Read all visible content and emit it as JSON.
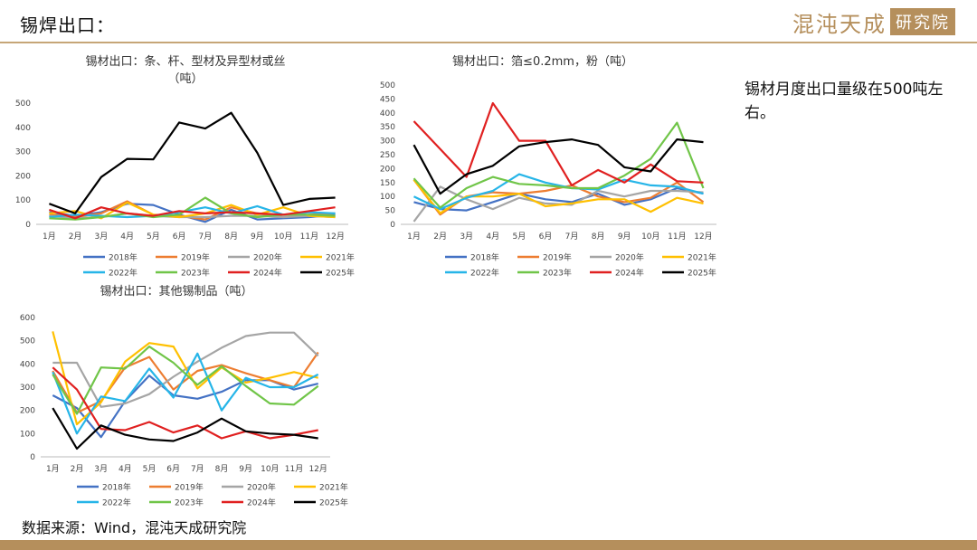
{
  "header": {
    "title": "锡焊出口：",
    "logo_main": "混沌天成",
    "logo_badge": "研究院"
  },
  "note": "锡材月度出口量级在500吨左右。",
  "source": "数据来源：Wind，混沌天成研究院",
  "colors": {
    "accent": "#c6a677"
  },
  "chart_data": [
    {
      "id": "c1",
      "type": "line",
      "title": [
        "锡材出口：条、杆、型材及异型材或丝",
        "（吨）"
      ],
      "categories": [
        "1月",
        "2月",
        "3月",
        "4月",
        "5月",
        "6月",
        "7月",
        "8月",
        "9月",
        "10月",
        "11月",
        "12月"
      ],
      "ylim": [
        0,
        500
      ],
      "yticks": [
        0,
        100,
        200,
        300,
        400,
        500
      ],
      "series": [
        {
          "name": "2018年",
          "color": "#4472c4",
          "values": [
            50,
            35,
            50,
            85,
            80,
            40,
            10,
            60,
            20,
            25,
            30,
            40
          ]
        },
        {
          "name": "2019年",
          "color": "#ed7d31",
          "values": [
            40,
            30,
            45,
            95,
            40,
            35,
            20,
            70,
            45,
            30,
            40,
            45
          ]
        },
        {
          "name": "2020年",
          "color": "#a5a5a5",
          "values": [
            35,
            25,
            30,
            45,
            35,
            30,
            30,
            35,
            35,
            30,
            35,
            30
          ]
        },
        {
          "name": "2021年",
          "color": "#ffc000",
          "values": [
            45,
            55,
            25,
            90,
            40,
            30,
            45,
            80,
            40,
            70,
            35,
            30
          ]
        },
        {
          "name": "2022年",
          "color": "#26b5e8",
          "values": [
            30,
            40,
            35,
            30,
            35,
            50,
            70,
            45,
            75,
            40,
            50,
            45
          ]
        },
        {
          "name": "2023年",
          "color": "#70c548",
          "values": [
            25,
            20,
            30,
            45,
            30,
            40,
            110,
            45,
            30,
            40,
            40,
            35
          ]
        },
        {
          "name": "2024年",
          "color": "#e02020",
          "values": [
            60,
            25,
            70,
            45,
            35,
            55,
            45,
            50,
            45,
            40,
            55,
            70
          ]
        },
        {
          "name": "2025年",
          "color": "#000000",
          "values": [
            85,
            45,
            195,
            270,
            268,
            420,
            395,
            460,
            295,
            80,
            105,
            110
          ]
        }
      ]
    },
    {
      "id": "c2",
      "type": "line",
      "title": [
        "锡材出口：箔≤0.2mm，粉（吨）"
      ],
      "categories": [
        "1月",
        "2月",
        "3月",
        "4月",
        "5月",
        "6月",
        "7月",
        "8月",
        "9月",
        "10月",
        "11月",
        "12月"
      ],
      "ylim": [
        0,
        500
      ],
      "yticks": [
        0,
        50,
        100,
        150,
        200,
        250,
        300,
        350,
        400,
        450,
        500
      ],
      "series": [
        {
          "name": "2018年",
          "color": "#4472c4",
          "values": [
            80,
            55,
            50,
            80,
            110,
            90,
            80,
            110,
            70,
            90,
            130,
            110
          ]
        },
        {
          "name": "2019年",
          "color": "#ed7d31",
          "values": [
            160,
            35,
            100,
            115,
            110,
            120,
            140,
            100,
            80,
            95,
            150,
            80
          ]
        },
        {
          "name": "2020年",
          "color": "#a5a5a5",
          "values": [
            10,
            135,
            90,
            55,
            95,
            75,
            70,
            120,
            100,
            120,
            120,
            115
          ]
        },
        {
          "name": "2021年",
          "color": "#ffc000",
          "values": [
            160,
            40,
            100,
            100,
            110,
            65,
            75,
            90,
            90,
            45,
            95,
            75
          ]
        },
        {
          "name": "2022年",
          "color": "#26b5e8",
          "values": [
            100,
            55,
            95,
            120,
            180,
            150,
            130,
            125,
            160,
            140,
            135,
            110
          ]
        },
        {
          "name": "2023年",
          "color": "#70c548",
          "values": [
            165,
            60,
            130,
            170,
            145,
            140,
            130,
            130,
            175,
            235,
            365,
            130
          ]
        },
        {
          "name": "2024年",
          "color": "#e02020",
          "values": [
            370,
            270,
            170,
            435,
            300,
            300,
            140,
            195,
            150,
            215,
            155,
            150
          ]
        },
        {
          "name": "2025年",
          "color": "#000000",
          "values": [
            285,
            110,
            180,
            210,
            280,
            295,
            305,
            285,
            205,
            190,
            305,
            295
          ]
        }
      ]
    },
    {
      "id": "c3",
      "type": "line",
      "title": [
        "锡材出口：其他锡制品（吨）"
      ],
      "categories": [
        "1月",
        "2月",
        "3月",
        "4月",
        "5月",
        "6月",
        "7月",
        "8月",
        "9月",
        "10月",
        "11月",
        "12月"
      ],
      "ylim": [
        0,
        600
      ],
      "yticks": [
        0,
        100,
        200,
        300,
        400,
        500,
        600
      ],
      "series": [
        {
          "name": "2018年",
          "color": "#4472c4",
          "values": [
            265,
            210,
            85,
            240,
            350,
            265,
            250,
            280,
            330,
            330,
            290,
            315
          ]
        },
        {
          "name": "2019年",
          "color": "#ed7d31",
          "values": [
            370,
            190,
            240,
            385,
            430,
            290,
            370,
            395,
            360,
            330,
            300,
            450
          ]
        },
        {
          "name": "2020年",
          "color": "#a5a5a5",
          "values": [
            405,
            405,
            215,
            230,
            270,
            345,
            410,
            470,
            520,
            535,
            535,
            435
          ]
        },
        {
          "name": "2021年",
          "color": "#ffc000",
          "values": [
            540,
            140,
            235,
            410,
            490,
            475,
            295,
            385,
            320,
            340,
            365,
            340
          ]
        },
        {
          "name": "2022年",
          "color": "#26b5e8",
          "values": [
            365,
            100,
            260,
            240,
            380,
            255,
            445,
            200,
            340,
            300,
            300,
            355
          ]
        },
        {
          "name": "2023年",
          "color": "#70c548",
          "values": [
            355,
            185,
            385,
            380,
            475,
            405,
            310,
            390,
            305,
            230,
            225,
            305
          ]
        },
        {
          "name": "2024年",
          "color": "#e02020",
          "values": [
            385,
            290,
            120,
            115,
            150,
            105,
            135,
            80,
            110,
            80,
            95,
            115
          ]
        },
        {
          "name": "2025年",
          "color": "#000000",
          "values": [
            210,
            35,
            135,
            95,
            75,
            68,
            105,
            165,
            110,
            100,
            95,
            80
          ]
        }
      ]
    }
  ]
}
